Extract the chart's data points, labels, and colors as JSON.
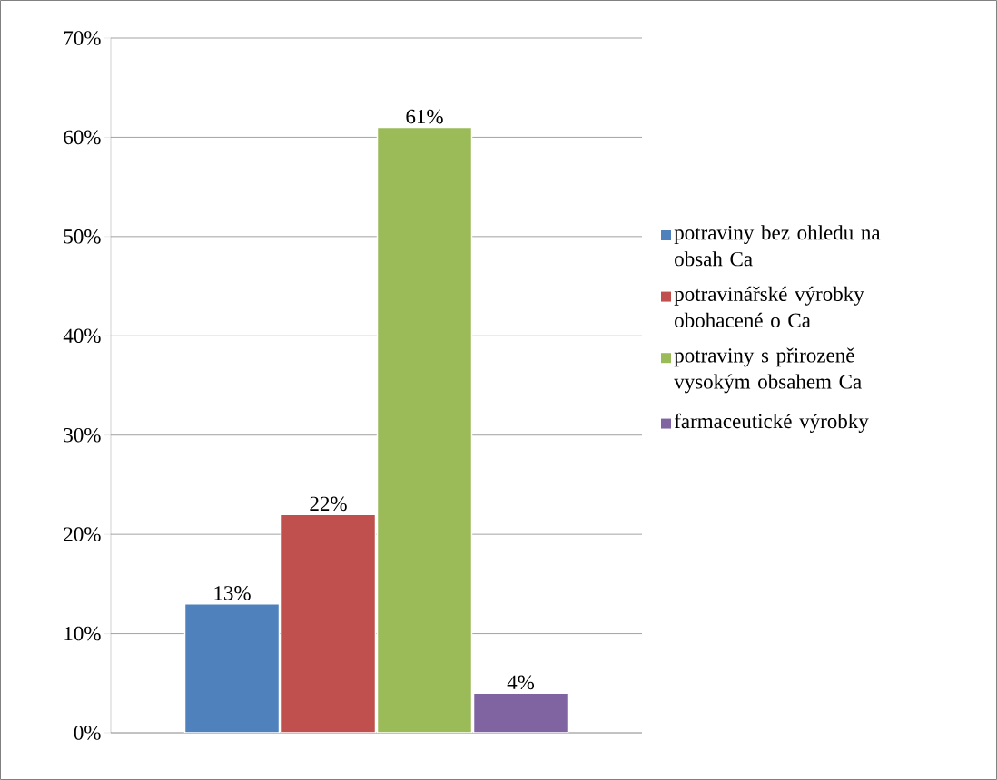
{
  "chart_data": {
    "type": "bar",
    "categories": [
      null
    ],
    "series": [
      {
        "name": "potraviny bez ohledu na obsah Ca",
        "color": "#4f81bd",
        "values": [
          13
        ],
        "value_labels": [
          "13%"
        ]
      },
      {
        "name": "potravinářské výrobky obohacené o Ca",
        "color": "#c0504d",
        "values": [
          22
        ],
        "value_labels": [
          "22%"
        ]
      },
      {
        "name": "potraviny s přirozeně vysokým obsahem Ca",
        "color": "#9bbb59",
        "values": [
          61
        ],
        "value_labels": [
          "61%"
        ]
      },
      {
        "name": "farmaceutické výrobky",
        "color": "#8064a2",
        "values": [
          4
        ],
        "value_labels": [
          "4%"
        ]
      }
    ],
    "ylim": [
      0,
      70
    ],
    "yticks": [
      {
        "value": 0,
        "label": "0%"
      },
      {
        "value": 10,
        "label": "10%"
      },
      {
        "value": 20,
        "label": "20%"
      },
      {
        "value": 30,
        "label": "30%"
      },
      {
        "value": 40,
        "label": "40%"
      },
      {
        "value": 50,
        "label": "50%"
      },
      {
        "value": 60,
        "label": "60%"
      },
      {
        "value": 70,
        "label": "70%"
      }
    ],
    "grid": "y",
    "legend": "right"
  }
}
